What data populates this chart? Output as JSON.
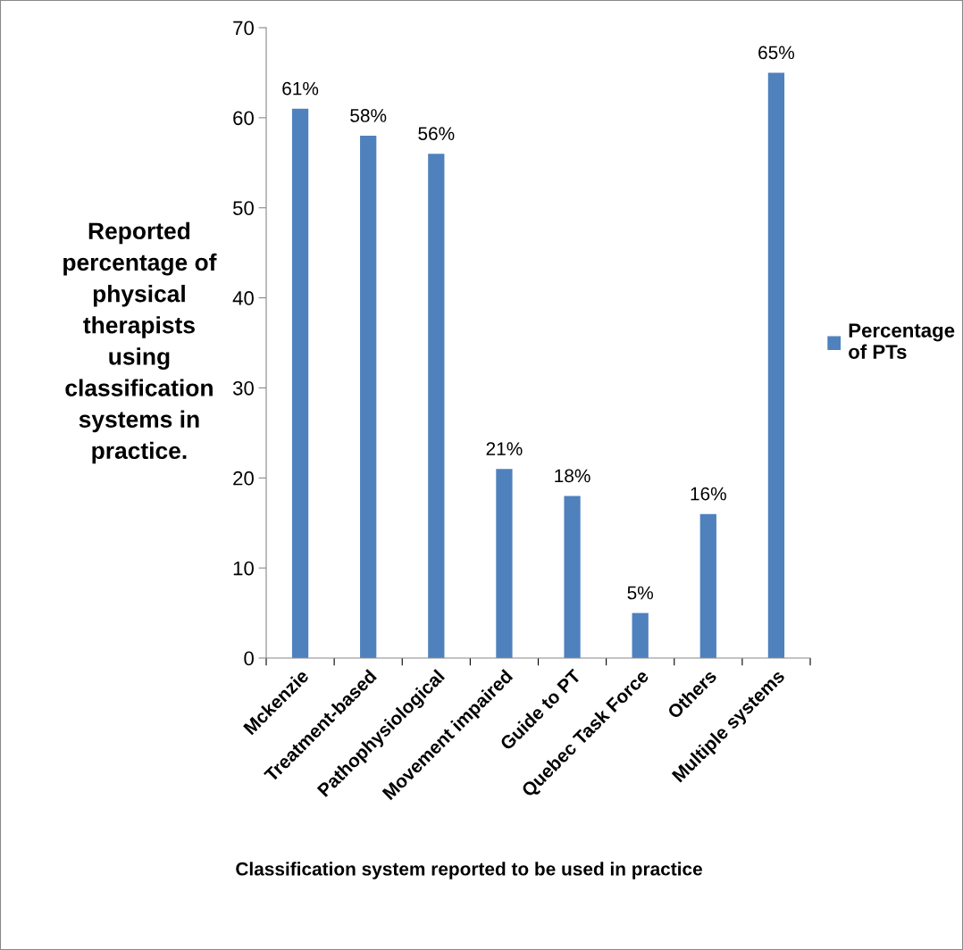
{
  "chart_data": {
    "type": "bar",
    "xlabel": "Classification system reported to be used in practice",
    "ylabel": "Reported\npercentage of\nphysical\ntherapists\nusing\nclassification\nsystems in\npractice.",
    "categories": [
      "Mckenzie",
      "Treatment-based",
      "Pathophysiological",
      "Movement impaired",
      "Guide to PT",
      "Quebec Task Force",
      "Others",
      "Multiple systems"
    ],
    "series": [
      {
        "name": "Percentage\nof PTs",
        "color": "#4f81bd",
        "values": [
          61,
          58,
          56,
          21,
          18,
          5,
          16,
          65
        ],
        "value_labels": [
          "61%",
          "58%",
          "56%",
          "21%",
          "18%",
          "5%",
          "16%",
          "65%"
        ]
      }
    ],
    "ylim": [
      0,
      70
    ],
    "yticks": [
      0,
      10,
      20,
      30,
      40,
      50,
      60,
      70
    ],
    "grid": false,
    "legend": "right"
  }
}
